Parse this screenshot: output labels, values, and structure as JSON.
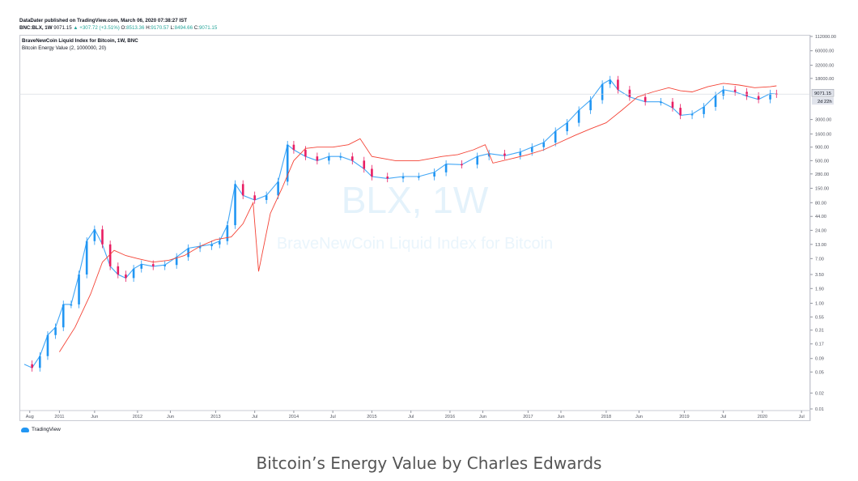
{
  "header": {
    "line1": "DataDater published on TradingView.com, March 06, 2020 07:38:27 IST",
    "symbol": "BNC:BLX, 1W",
    "price": "9071.15",
    "change": "▲ +307.72 (+3.51%)",
    "o_label": "O:",
    "o_value": "8513.36",
    "h_label": "H:",
    "h_value": "9170.57",
    "l_label": "L:",
    "l_value": "8494.66",
    "c_label": "C:",
    "c_value": "9071.15"
  },
  "legend": {
    "series1": "BraveNewCoin Liquid Index for Bitcoin, 1W, BNC",
    "series2": "Bitcoin Energy Value (2, 1000000, 20)"
  },
  "watermark": {
    "symbol": "BLX, 1W",
    "name": "BraveNewCoin Liquid Index for Bitcoin"
  },
  "price_tags": {
    "last": "9071.15",
    "countdown": "2d 22h"
  },
  "footer": {
    "logo": "TradingView"
  },
  "caption": "Bitcoin’s Energy Value by Charles Edwards",
  "colors": {
    "up": "#26a69a",
    "down": "#ef5350",
    "candle_up": "#2196f3",
    "candle_down": "#e91e63",
    "energy": "#f44336"
  },
  "chart_data": {
    "type": "line",
    "y_scale": "log",
    "ylim": [
      0.01,
      112000
    ],
    "y_ticks": [
      "112000.00",
      "60000.00",
      "32000.00",
      "18000.00",
      "3000.00",
      "1600.00",
      "900.00",
      "500.00",
      "280.00",
      "150.00",
      "80.00",
      "44.00",
      "24.00",
      "13.00",
      "7.00",
      "3.50",
      "1.90",
      "1.00",
      "0.55",
      "0.31",
      "0.17",
      "0.09",
      "0.05",
      "0.02",
      "0.01"
    ],
    "x_ticks": [
      "Aug",
      "2011",
      "Jun",
      "2012",
      "Jun",
      "2013",
      "Jul",
      "2014",
      "Jul",
      "2015",
      "Jul",
      "2016",
      "Jun",
      "2017",
      "Jun",
      "2018",
      "Jun",
      "2019",
      "Jul",
      "2020",
      "Jul"
    ],
    "xlim": [
      2010.55,
      2020.55
    ],
    "x_tick_dates": [
      2010.62,
      2011.0,
      2011.45,
      2012.0,
      2012.42,
      2013.0,
      2013.5,
      2014.0,
      2014.5,
      2015.0,
      2015.5,
      2016.0,
      2016.42,
      2017.0,
      2017.42,
      2018.0,
      2018.42,
      2019.0,
      2019.5,
      2020.0,
      2020.5
    ],
    "series": [
      {
        "name": "BraveNewCoin Liquid Index for Bitcoin, 1W, BNC",
        "x": [
          2010.55,
          2010.65,
          2010.75,
          2010.85,
          2010.95,
          2011.05,
          2011.15,
          2011.25,
          2011.35,
          2011.45,
          2011.55,
          2011.65,
          2011.75,
          2011.85,
          2011.95,
          2012.05,
          2012.2,
          2012.35,
          2012.5,
          2012.65,
          2012.8,
          2012.95,
          2013.05,
          2013.15,
          2013.25,
          2013.35,
          2013.5,
          2013.65,
          2013.8,
          2013.92,
          2014.0,
          2014.15,
          2014.3,
          2014.45,
          2014.6,
          2014.75,
          2014.9,
          2015.0,
          2015.2,
          2015.4,
          2015.6,
          2015.8,
          2015.95,
          2016.15,
          2016.35,
          2016.5,
          2016.7,
          2016.9,
          2017.05,
          2017.2,
          2017.35,
          2017.5,
          2017.65,
          2017.8,
          2017.95,
          2018.05,
          2018.15,
          2018.3,
          2018.5,
          2018.7,
          2018.85,
          2018.95,
          2019.1,
          2019.25,
          2019.4,
          2019.5,
          2019.65,
          2019.8,
          2019.95,
          2020.1,
          2020.18
        ],
        "values": [
          0.07,
          0.06,
          0.1,
          0.25,
          0.35,
          0.95,
          0.95,
          3.5,
          15,
          25,
          13,
          5,
          3.5,
          3,
          4.5,
          5.5,
          5,
          5.3,
          7.5,
          11,
          12,
          13,
          15,
          30,
          180,
          110,
          90,
          110,
          200,
          1000,
          800,
          600,
          500,
          600,
          600,
          500,
          350,
          250,
          230,
          250,
          250,
          300,
          430,
          420,
          600,
          680,
          620,
          730,
          900,
          1100,
          1800,
          2600,
          4500,
          7000,
          14000,
          17000,
          11000,
          8000,
          6500,
          6500,
          5000,
          3600,
          3800,
          5200,
          8500,
          11000,
          10000,
          8300,
          7200,
          9300,
          9071.15
        ]
      },
      {
        "name": "Bitcoin Energy Value (2, 1000000, 20)",
        "x": [
          2011.0,
          2011.2,
          2011.4,
          2011.55,
          2011.7,
          2011.85,
          2012.0,
          2012.2,
          2012.4,
          2012.6,
          2012.8,
          2013.0,
          2013.2,
          2013.35,
          2013.48,
          2013.55,
          2013.7,
          2013.85,
          2014.0,
          2014.15,
          2014.3,
          2014.5,
          2014.7,
          2014.85,
          2015.0,
          2015.3,
          2015.6,
          2015.9,
          2016.1,
          2016.3,
          2016.45,
          2016.55,
          2016.8,
          2017.0,
          2017.2,
          2017.4,
          2017.6,
          2017.8,
          2018.0,
          2018.2,
          2018.4,
          2018.6,
          2018.8,
          2018.95,
          2019.1,
          2019.3,
          2019.5,
          2019.7,
          2019.9,
          2020.1,
          2020.18
        ],
        "values": [
          0.12,
          0.35,
          1.5,
          6,
          10,
          8,
          7,
          6,
          6.5,
          8,
          12,
          16,
          18,
          32,
          80,
          4,
          50,
          150,
          500,
          850,
          900,
          900,
          1000,
          1300,
          600,
          500,
          500,
          600,
          650,
          800,
          1000,
          450,
          550,
          650,
          800,
          1100,
          1500,
          2000,
          2600,
          4500,
          8000,
          10000,
          12000,
          10500,
          10000,
          12500,
          14500,
          13500,
          12000,
          12500,
          13000
        ]
      }
    ]
  }
}
